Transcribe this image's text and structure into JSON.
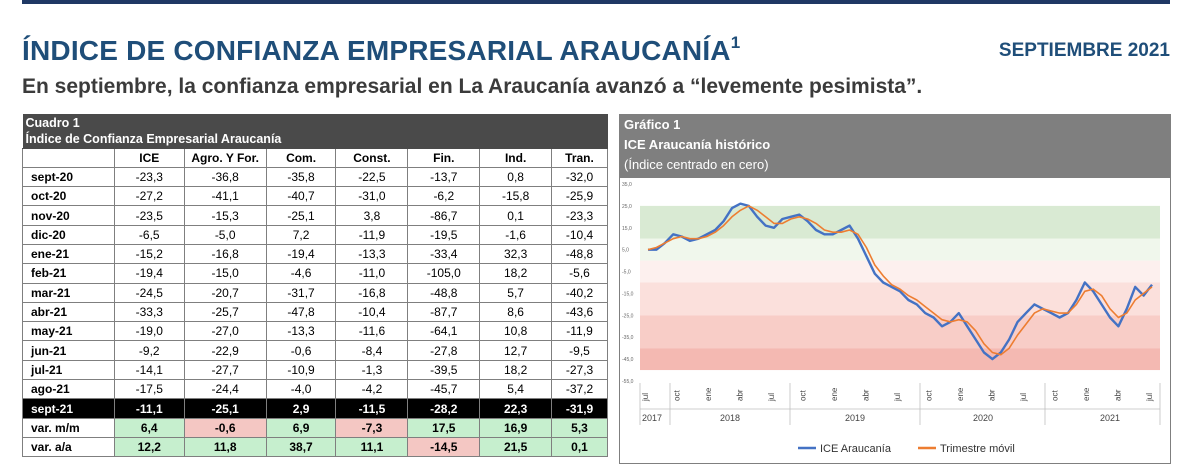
{
  "header": {
    "title": "ÍNDICE DE CONFIANZA EMPRESARIAL ARAUCANÍA",
    "title_sup": "1",
    "period": "SEPTIEMBRE 2021",
    "subtitle": "En septiembre, la confianza empresarial en La Araucanía avanzó a “levemente pesimista”."
  },
  "table": {
    "caption1": "Cuadro 1",
    "caption2": "Índice de Confianza Empresarial Araucanía",
    "columns": [
      "ICE",
      "Agro. Y For.",
      "Com.",
      "Const.",
      "Fin.",
      "Ind.",
      "Tran."
    ],
    "rows": [
      {
        "label": "sept-20",
        "values": [
          "-23,3",
          "-36,8",
          "-35,8",
          "-22,5",
          "-13,7",
          "0,8",
          "-32,0"
        ]
      },
      {
        "label": "oct-20",
        "values": [
          "-27,2",
          "-41,1",
          "-40,7",
          "-31,0",
          "-6,2",
          "-15,8",
          "-25,9"
        ]
      },
      {
        "label": "nov-20",
        "values": [
          "-23,5",
          "-15,3",
          "-25,1",
          "3,8",
          "-86,7",
          "0,1",
          "-23,3"
        ]
      },
      {
        "label": "dic-20",
        "values": [
          "-6,5",
          "-5,0",
          "7,2",
          "-11,9",
          "-19,5",
          "-1,6",
          "-10,4"
        ]
      },
      {
        "label": "ene-21",
        "values": [
          "-15,2",
          "-16,8",
          "-19,4",
          "-13,3",
          "-33,4",
          "32,3",
          "-48,8"
        ]
      },
      {
        "label": "feb-21",
        "values": [
          "-19,4",
          "-15,0",
          "-4,6",
          "-11,0",
          "-105,0",
          "18,2",
          "-5,6"
        ]
      },
      {
        "label": "mar-21",
        "values": [
          "-24,5",
          "-20,7",
          "-31,7",
          "-16,8",
          "-48,8",
          "5,7",
          "-40,2"
        ]
      },
      {
        "label": "abr-21",
        "values": [
          "-33,3",
          "-25,7",
          "-47,8",
          "-10,4",
          "-87,7",
          "8,6",
          "-43,6"
        ]
      },
      {
        "label": "may-21",
        "values": [
          "-19,0",
          "-27,0",
          "-13,3",
          "-11,6",
          "-64,1",
          "10,8",
          "-11,9"
        ]
      },
      {
        "label": "jun-21",
        "values": [
          "-9,2",
          "-22,9",
          "-0,6",
          "-8,4",
          "-27,8",
          "12,7",
          "-9,5"
        ]
      },
      {
        "label": "jul-21",
        "values": [
          "-14,1",
          "-27,7",
          "-10,9",
          "-1,3",
          "-39,5",
          "18,2",
          "-27,3"
        ]
      },
      {
        "label": "ago-21",
        "values": [
          "-17,5",
          "-24,4",
          "-4,0",
          "-4,2",
          "-45,7",
          "5,4",
          "-37,2"
        ]
      }
    ],
    "current": {
      "label": "sept-21",
      "values": [
        "-11,1",
        "-25,1",
        "2,9",
        "-11,5",
        "-28,2",
        "22,3",
        "-31,9"
      ]
    },
    "var_mm": {
      "label": "var. m/m",
      "values": [
        "6,4",
        "-0,6",
        "6,9",
        "-7,3",
        "17,5",
        "16,9",
        "5,3"
      ]
    },
    "var_aa": {
      "label": "var. a/a",
      "values": [
        "12,2",
        "11,8",
        "38,7",
        "11,1",
        "-14,5",
        "21,5",
        "0,1"
      ]
    },
    "colors": {
      "positive": "#c6efce",
      "negative": "#f4c7c3"
    }
  },
  "chart_data": {
    "type": "line",
    "label1": "Gráfico 1",
    "title": "ICE Araucanía histórico",
    "subtitle": "(Índice centrado en cero)",
    "ylim": [
      -55,
      35
    ],
    "yticks": [
      "35,0",
      "25,0",
      "15,0",
      "5,0",
      "-5,0",
      "-15,0",
      "-25,0",
      "-35,0",
      "-45,0",
      "-55,0"
    ],
    "months": [
      "jul",
      "oct",
      "ene",
      "abr",
      "jul",
      "oct",
      "ene",
      "abr",
      "jul",
      "oct",
      "ene",
      "abr",
      "jul",
      "oct",
      "ene",
      "abr",
      "jul"
    ],
    "years": [
      "2017",
      "2018",
      "2019",
      "2020",
      "2021"
    ],
    "series": [
      {
        "name": "ICE Araucanía",
        "color": "#4472c4",
        "values": [
          5,
          5,
          8,
          12,
          11,
          9,
          10,
          12,
          14,
          18,
          24,
          26,
          25,
          20,
          16,
          15,
          19,
          20,
          21,
          18,
          14,
          12,
          12,
          14,
          16,
          10,
          2,
          -6,
          -10,
          -12,
          -14,
          -18,
          -20,
          -24,
          -26,
          -30,
          -28,
          -24,
          -30,
          -36,
          -42,
          -45,
          -42,
          -36,
          -28,
          -24,
          -20,
          -22,
          -24,
          -26,
          -24,
          -18,
          -10,
          -14,
          -20,
          -26,
          -30,
          -22,
          -12,
          -16,
          -11
        ]
      },
      {
        "name": "Trimestre móvil",
        "color": "#ed7d31",
        "values": [
          5,
          6,
          8,
          10,
          11,
          10,
          10,
          11,
          13,
          16,
          20,
          23,
          25,
          23,
          20,
          17,
          17,
          19,
          20,
          19,
          17,
          14,
          13,
          13,
          14,
          12,
          6,
          -2,
          -7,
          -11,
          -13,
          -16,
          -18,
          -21,
          -24,
          -27,
          -28,
          -27,
          -28,
          -32,
          -38,
          -42,
          -43,
          -40,
          -34,
          -29,
          -24,
          -22,
          -23,
          -24,
          -24,
          -20,
          -14,
          -13,
          -16,
          -22,
          -26,
          -24,
          -18,
          -15,
          -12
        ]
      }
    ],
    "bands": [
      {
        "from": 10,
        "to": 25,
        "color": "#d9ead3"
      },
      {
        "from": 0,
        "to": 10,
        "color": "#f0f7ec"
      },
      {
        "from": -10,
        "to": 0,
        "color": "#fdf0ee"
      },
      {
        "from": -25,
        "to": -10,
        "color": "#fbe0dc"
      },
      {
        "from": -40,
        "to": -25,
        "color": "#f8cdc7"
      },
      {
        "from": -50,
        "to": -40,
        "color": "#f4b9b2"
      }
    ]
  }
}
